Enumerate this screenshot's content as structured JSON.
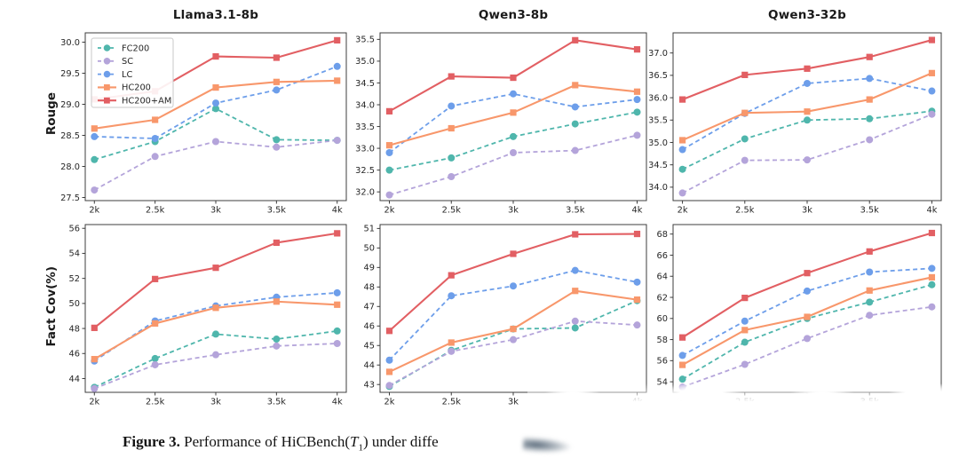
{
  "figure": {
    "columns": [
      "Llama3.1-8b",
      "Qwen3-8b",
      "Qwen3-32b"
    ],
    "row_ylabels": [
      "Rouge",
      "Fact Cov(%)"
    ],
    "caption": {
      "label": "Figure 3.",
      "text_before": " Performance of HiCBench(",
      "var": "T",
      "sub": "1",
      "text_after": ") under diffe"
    }
  },
  "legend": {
    "entries": [
      {
        "name": "FC200",
        "color": "#4fb6ac",
        "dashed": true,
        "marker": "circle"
      },
      {
        "name": "SC",
        "color": "#b4a4da",
        "dashed": true,
        "marker": "circle"
      },
      {
        "name": "LC",
        "color": "#6d9eea",
        "dashed": true,
        "marker": "circle"
      },
      {
        "name": "HC200",
        "color": "#f8976b",
        "dashed": false,
        "marker": "square"
      },
      {
        "name": "HC200+AM",
        "color": "#e25f63",
        "dashed": false,
        "marker": "square"
      }
    ]
  },
  "chart_data": [
    {
      "type": "line",
      "id": "llama3-rouge",
      "title": "Llama3.1-8b",
      "ylabel": "Rouge",
      "x": [
        "2k",
        "2.5k",
        "3k",
        "3.5k",
        "4k"
      ],
      "ylim": [
        27.45,
        30.15
      ],
      "yticks": [
        "27.5",
        "28.0",
        "28.5",
        "29.0",
        "29.5",
        "30.0"
      ],
      "legend": true,
      "series": [
        {
          "name": "FC200",
          "values": [
            28.11,
            28.4,
            28.93,
            28.43,
            28.42
          ]
        },
        {
          "name": "SC",
          "values": [
            27.62,
            28.16,
            28.4,
            28.31,
            28.42
          ]
        },
        {
          "name": "LC",
          "values": [
            28.48,
            28.45,
            29.02,
            29.23,
            29.61
          ]
        },
        {
          "name": "HC200",
          "values": [
            28.61,
            28.75,
            29.27,
            29.36,
            29.38
          ]
        },
        {
          "name": "HC200+AM",
          "values": [
            29.08,
            29.21,
            29.77,
            29.75,
            30.03
          ]
        }
      ]
    },
    {
      "type": "line",
      "id": "qwen3-8b-rouge",
      "title": "Qwen3-8b",
      "ylabel": "Rouge",
      "x": [
        "2k",
        "2.5k",
        "3k",
        "3.5k",
        "4k"
      ],
      "ylim": [
        31.8,
        35.65
      ],
      "yticks": [
        "32.0",
        "32.5",
        "33.0",
        "33.5",
        "34.0",
        "34.5",
        "35.0",
        "35.5"
      ],
      "legend": false,
      "series": [
        {
          "name": "FC200",
          "values": [
            32.5,
            32.78,
            33.27,
            33.56,
            33.83
          ]
        },
        {
          "name": "SC",
          "values": [
            31.93,
            32.35,
            32.9,
            32.95,
            33.3
          ]
        },
        {
          "name": "LC",
          "values": [
            32.9,
            33.97,
            34.25,
            33.95,
            34.12
          ]
        },
        {
          "name": "HC200",
          "values": [
            33.07,
            33.46,
            33.82,
            34.45,
            34.3
          ]
        },
        {
          "name": "HC200+AM",
          "values": [
            33.85,
            34.65,
            34.62,
            35.48,
            35.27
          ]
        }
      ]
    },
    {
      "type": "line",
      "id": "qwen3-32b-rouge",
      "title": "Qwen3-32b",
      "ylabel": "Rouge",
      "x": [
        "2k",
        "2.5k",
        "3k",
        "3.5k",
        "4k"
      ],
      "ylim": [
        33.7,
        37.45
      ],
      "yticks": [
        "34.0",
        "34.5",
        "35.0",
        "35.5",
        "36.0",
        "36.5",
        "37.0"
      ],
      "legend": false,
      "series": [
        {
          "name": "FC200",
          "values": [
            34.4,
            35.08,
            35.5,
            35.53,
            35.7
          ]
        },
        {
          "name": "SC",
          "values": [
            33.87,
            34.6,
            34.61,
            35.06,
            35.63
          ]
        },
        {
          "name": "LC",
          "values": [
            34.84,
            35.65,
            36.32,
            36.43,
            36.15
          ]
        },
        {
          "name": "HC200",
          "values": [
            35.05,
            35.66,
            35.69,
            35.96,
            36.55
          ]
        },
        {
          "name": "HC200+AM",
          "values": [
            35.96,
            36.51,
            36.65,
            36.91,
            37.29
          ]
        }
      ]
    },
    {
      "type": "line",
      "id": "llama3-factcov",
      "title": "Llama3.1-8b",
      "ylabel": "Fact Cov(%)",
      "x": [
        "2k",
        "2.5k",
        "3k",
        "3.5k",
        "4k"
      ],
      "ylim": [
        42.9,
        56.3
      ],
      "yticks": [
        "44",
        "46",
        "48",
        "50",
        "52",
        "54",
        "56"
      ],
      "legend": false,
      "series": [
        {
          "name": "FC200",
          "values": [
            43.3,
            45.6,
            47.55,
            47.15,
            47.8
          ]
        },
        {
          "name": "SC",
          "values": [
            43.2,
            45.1,
            45.9,
            46.6,
            46.8
          ]
        },
        {
          "name": "LC",
          "values": [
            45.4,
            48.6,
            49.8,
            50.5,
            50.85
          ]
        },
        {
          "name": "HC200",
          "values": [
            45.55,
            48.4,
            49.65,
            50.15,
            49.9
          ]
        },
        {
          "name": "HC200+AM",
          "values": [
            48.05,
            51.95,
            52.85,
            54.85,
            55.6
          ]
        }
      ]
    },
    {
      "type": "line",
      "id": "qwen3-8b-factcov",
      "title": "Qwen3-8b",
      "ylabel": "Fact Cov(%)",
      "x": [
        "2k",
        "2.5k",
        "3k",
        "3.5k",
        "4k"
      ],
      "ylim": [
        42.6,
        51.2
      ],
      "yticks": [
        "43",
        "44",
        "45",
        "46",
        "47",
        "48",
        "49",
        "50",
        "51"
      ],
      "legend": false,
      "series": [
        {
          "name": "FC200",
          "values": [
            42.9,
            44.75,
            45.85,
            45.9,
            47.3
          ]
        },
        {
          "name": "SC",
          "values": [
            42.95,
            44.7,
            45.3,
            46.25,
            46.05
          ]
        },
        {
          "name": "LC",
          "values": [
            44.25,
            47.55,
            48.05,
            48.85,
            48.25
          ]
        },
        {
          "name": "HC200",
          "values": [
            43.65,
            45.15,
            45.85,
            47.8,
            47.35
          ]
        },
        {
          "name": "HC200+AM",
          "values": [
            45.75,
            48.6,
            49.7,
            50.7,
            50.72
          ]
        }
      ]
    },
    {
      "type": "line",
      "id": "qwen3-32b-factcov",
      "title": "Qwen3-32b",
      "ylabel": "Fact Cov(%)",
      "x": [
        "2k",
        "2.5k",
        "3k",
        "3.5k",
        "4k"
      ],
      "ylim": [
        53.0,
        68.9
      ],
      "yticks": [
        "54",
        "56",
        "58",
        "60",
        "62",
        "64",
        "66",
        "68"
      ],
      "legend": false,
      "series": [
        {
          "name": "FC200",
          "values": [
            54.25,
            57.75,
            60.0,
            61.55,
            63.2
          ]
        },
        {
          "name": "SC",
          "values": [
            53.5,
            55.65,
            58.1,
            60.3,
            61.1
          ]
        },
        {
          "name": "LC",
          "values": [
            56.5,
            59.75,
            62.6,
            64.4,
            64.75
          ]
        },
        {
          "name": "HC200",
          "values": [
            55.6,
            58.9,
            60.15,
            62.65,
            63.9
          ]
        },
        {
          "name": "HC200+AM",
          "values": [
            58.2,
            61.95,
            64.3,
            66.35,
            68.1
          ]
        }
      ]
    }
  ]
}
